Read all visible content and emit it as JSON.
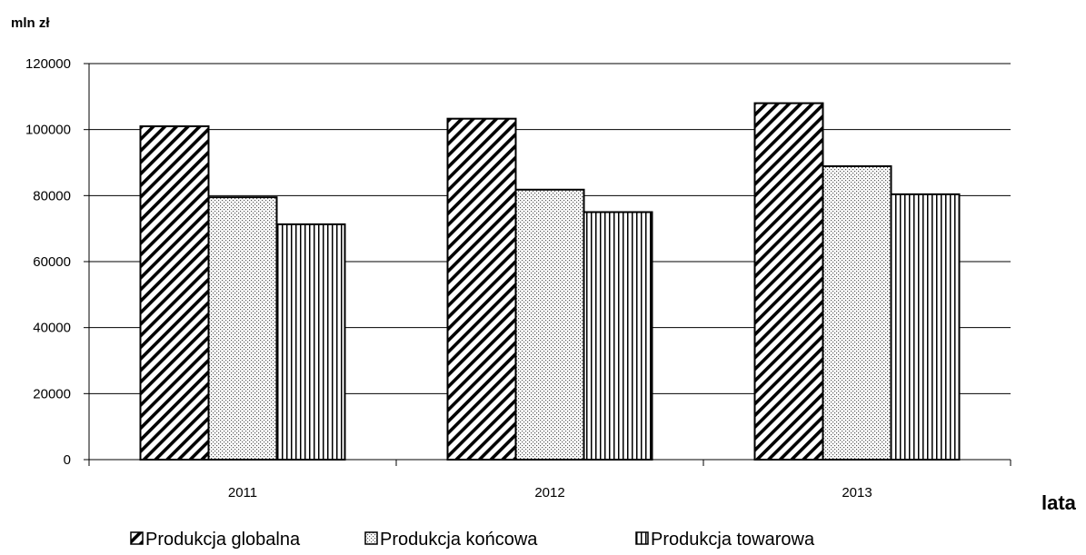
{
  "chart_data": {
    "type": "bar",
    "ylabel": "mln zł",
    "xlabel": "lata",
    "categories": [
      "2011",
      "2012",
      "2013"
    ],
    "ylim": [
      0,
      120000
    ],
    "yticks": [
      0,
      20000,
      40000,
      60000,
      80000,
      100000,
      120000
    ],
    "grid": true,
    "legend_position": "bottom",
    "series": [
      {
        "name": "Produkcja globalna",
        "pattern": "diagonal-hatch",
        "values": [
          101000,
          103300,
          108000
        ]
      },
      {
        "name": "Produkcja końcowa",
        "pattern": "dotted",
        "values": [
          79500,
          81800,
          88900
        ]
      },
      {
        "name": "Produkcja towarowa",
        "pattern": "vertical-lines",
        "values": [
          71300,
          75000,
          80400
        ]
      }
    ]
  }
}
